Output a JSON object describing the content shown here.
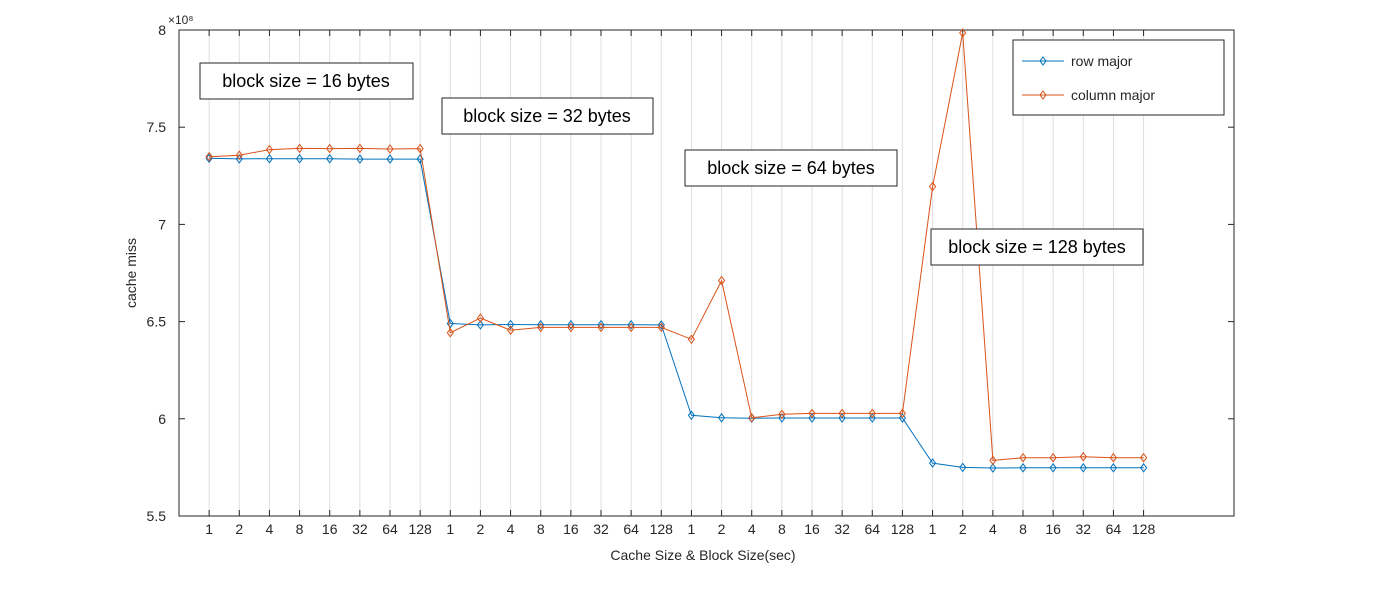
{
  "chart_data": {
    "type": "line",
    "xlabel": "Cache Size & Block Size(sec)",
    "ylabel": "cache miss",
    "y_exponent": "×10⁸",
    "ylim": [
      550000000,
      800000000
    ],
    "y_ticks": [
      550000000,
      600000000,
      650000000,
      700000000,
      750000000,
      800000000
    ],
    "y_tick_labels": [
      "5.5",
      "6",
      "6.5",
      "7",
      "7.5",
      "8"
    ],
    "xlim": [
      0,
      35
    ],
    "x_ticks": [
      1,
      2,
      3,
      4,
      5,
      6,
      7,
      8,
      9,
      10,
      11,
      12,
      13,
      14,
      15,
      16,
      17,
      18,
      19,
      20,
      21,
      22,
      23,
      24,
      25,
      26,
      27,
      28,
      29,
      30,
      31,
      32
    ],
    "categories": [
      "1",
      "2",
      "4",
      "8",
      "16",
      "32",
      "64",
      "128",
      "1",
      "2",
      "4",
      "8",
      "16",
      "32",
      "64",
      "128",
      "1",
      "2",
      "4",
      "8",
      "16",
      "32",
      "64",
      "128",
      "1",
      "2",
      "4",
      "8",
      "16",
      "32",
      "64",
      "128"
    ],
    "grid": "vertical",
    "legend_position": "top-right",
    "series": [
      {
        "name": "row major",
        "color": "#0072BD",
        "values": [
          734000000,
          733700000,
          733800000,
          733800000,
          733800000,
          733600000,
          733600000,
          733600000,
          649000000,
          648300000,
          648500000,
          648400000,
          648400000,
          648400000,
          648400000,
          648300000,
          601800000,
          600500000,
          600300000,
          600400000,
          600400000,
          600400000,
          600400000,
          600400000,
          577200000,
          575000000,
          574700000,
          574800000,
          574800000,
          574800000,
          574800000,
          574800000
        ]
      },
      {
        "name": "column major",
        "color": "#D95319",
        "values": [
          734800000,
          735600000,
          738500000,
          739100000,
          739000000,
          739100000,
          738800000,
          739000000,
          644300000,
          651800000,
          645600000,
          647000000,
          647000000,
          647000000,
          647000000,
          647000000,
          640900000,
          671100000,
          600500000,
          602300000,
          602800000,
          602800000,
          602800000,
          602800000,
          719500000,
          798500000,
          578600000,
          580000000,
          580000000,
          580500000,
          580000000,
          580000000
        ]
      }
    ],
    "annotations": [
      "block size = 16 bytes",
      "block size = 32 bytes",
      "block size = 64 bytes",
      "block size = 128 bytes"
    ]
  }
}
